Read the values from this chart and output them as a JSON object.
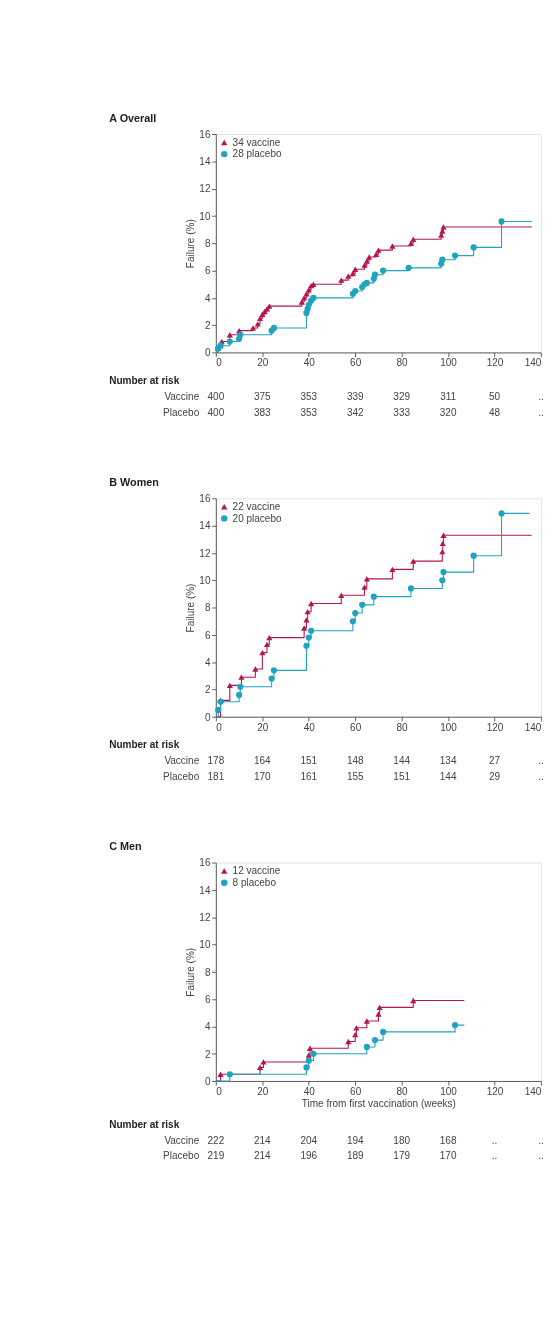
{
  "chart_data": [
    {
      "type": "step",
      "title": "A Overall",
      "ylabel": "Failure (%)",
      "xlim": [
        0,
        140
      ],
      "xticks": [
        0,
        20,
        40,
        60,
        80,
        100,
        120,
        140
      ],
      "ylim": [
        0,
        16
      ],
      "yticks": [
        0,
        2,
        4,
        6,
        8,
        10,
        12,
        14,
        16
      ],
      "grid": false,
      "legend": "top left",
      "line_style": "solid",
      "series": [
        {
          "name": "34 vaccine",
          "color": "#b5174a",
          "marker": "triangle",
          "x": [
            0,
            1,
            2,
            2.5,
            6,
            10,
            16,
            18,
            19,
            20,
            21,
            22,
            23,
            37,
            38,
            39,
            40,
            41,
            42,
            54,
            57,
            59,
            60,
            64,
            65,
            66,
            69,
            70,
            76,
            84,
            85,
            97,
            97.5,
            98,
            136
          ],
          "values": [
            0,
            0.3,
            0.5,
            0.8,
            1.3,
            1.6,
            1.8,
            2.1,
            2.5,
            2.8,
            3.0,
            3.2,
            3.4,
            3.7,
            4.0,
            4.3,
            4.6,
            4.9,
            5.0,
            5.3,
            5.6,
            5.8,
            6.1,
            6.4,
            6.7,
            7.0,
            7.2,
            7.5,
            7.8,
            8.0,
            8.3,
            8.6,
            8.9,
            9.2,
            9.2
          ]
        },
        {
          "name": "28 placebo",
          "color": "#1fa3c0",
          "marker": "circle",
          "x": [
            0,
            1,
            2,
            6,
            10,
            10.5,
            24,
            25,
            39,
            39.5,
            40,
            41,
            42,
            59,
            60,
            63,
            64,
            65,
            68,
            68.5,
            72,
            83,
            97,
            97.5,
            103,
            111,
            123,
            136
          ],
          "values": [
            0,
            0.3,
            0.5,
            0.8,
            1.0,
            1.3,
            1.6,
            1.8,
            2.9,
            3.2,
            3.5,
            3.8,
            4.0,
            4.3,
            4.5,
            4.8,
            5.0,
            5.1,
            5.4,
            5.7,
            6.0,
            6.2,
            6.5,
            6.8,
            7.1,
            7.7,
            9.6,
            9.6
          ]
        }
      ],
      "annotations": [
        "Number at risk",
        "Vaccine",
        "400",
        "375",
        "353",
        "339",
        "329",
        "311",
        "50",
        "..",
        "Placebo",
        "400",
        "383",
        "353",
        "342",
        "333",
        "320",
        "48",
        ".."
      ]
    },
    {
      "type": "step",
      "title": "B Women",
      "ylabel": "Failure (%)",
      "xlim": [
        0,
        140
      ],
      "xticks": [
        0,
        20,
        40,
        60,
        80,
        100,
        120,
        140
      ],
      "ylim": [
        0,
        16
      ],
      "yticks": [
        0,
        2,
        4,
        6,
        8,
        10,
        12,
        14,
        16
      ],
      "grid": false,
      "legend": "top left",
      "line_style": "solid",
      "series": [
        {
          "name": "22 vaccine",
          "color": "#b5174a",
          "marker": "triangle",
          "x": [
            0,
            2,
            6,
            11,
            17,
            20,
            22,
            23,
            38,
            39,
            39.5,
            41,
            54,
            64,
            65,
            76,
            85,
            97.5,
            97.7,
            98,
            136
          ],
          "values": [
            0,
            1.2,
            2.3,
            2.9,
            3.5,
            4.7,
            5.3,
            5.8,
            6.5,
            7.1,
            7.7,
            8.3,
            8.9,
            9.5,
            10.1,
            10.8,
            11.4,
            12.1,
            12.7,
            13.3,
            13.3
          ]
        },
        {
          "name": "20 placebo",
          "color": "#1fa3c0",
          "marker": "circle",
          "x": [
            0,
            1,
            2,
            10,
            10.5,
            24,
            25,
            39,
            40,
            41,
            59,
            60,
            63,
            68,
            84,
            97.5,
            98,
            111,
            123,
            135
          ],
          "values": [
            0,
            0.5,
            1.1,
            1.6,
            2.2,
            2.8,
            3.4,
            5.2,
            5.8,
            6.3,
            7.0,
            7.6,
            8.2,
            8.8,
            9.4,
            10.0,
            10.6,
            11.8,
            14.9,
            14.9
          ]
        }
      ],
      "annotations": [
        "Number at risk",
        "Vaccine",
        "178",
        "164",
        "151",
        "148",
        "144",
        "134",
        "27",
        "..",
        "Placebo",
        "181",
        "170",
        "161",
        "155",
        "151",
        "144",
        "29",
        ".."
      ]
    },
    {
      "type": "step",
      "title": "C Men",
      "xlabel": "Time from first vaccination (weeks)",
      "ylabel": "Failure (%)",
      "xlim": [
        0,
        140
      ],
      "xticks": [
        0,
        20,
        40,
        60,
        80,
        100,
        120,
        140
      ],
      "ylim": [
        0,
        16
      ],
      "yticks": [
        0,
        2,
        4,
        6,
        8,
        10,
        12,
        14,
        16
      ],
      "grid": false,
      "legend": "top left",
      "line_style": "solid",
      "series": [
        {
          "name": "12 vaccine",
          "color": "#b5174a",
          "marker": "triangle",
          "x": [
            0,
            2,
            19,
            20.5,
            40,
            40.5,
            57,
            60,
            60.5,
            65,
            70,
            70.5,
            85,
            107
          ],
          "values": [
            0,
            0.5,
            1.0,
            1.4,
            1.9,
            2.4,
            2.9,
            3.4,
            3.9,
            4.4,
            4.9,
            5.4,
            5.9,
            5.9
          ]
        },
        {
          "name": "8 placebo",
          "color": "#1fa3c0",
          "marker": "circle",
          "x": [
            0,
            6,
            39,
            40,
            42,
            65,
            68.5,
            72,
            103,
            107
          ],
          "values": [
            0,
            0.5,
            1.0,
            1.5,
            2.0,
            2.5,
            3.0,
            3.6,
            4.1,
            4.1
          ]
        }
      ],
      "annotations": [
        "Number at risk",
        "Vaccine",
        "222",
        "214",
        "204",
        "194",
        "180",
        "168",
        "..",
        "..",
        "Placebo",
        "219",
        "214",
        "196",
        "189",
        "179",
        "170",
        "..",
        ".."
      ]
    }
  ]
}
